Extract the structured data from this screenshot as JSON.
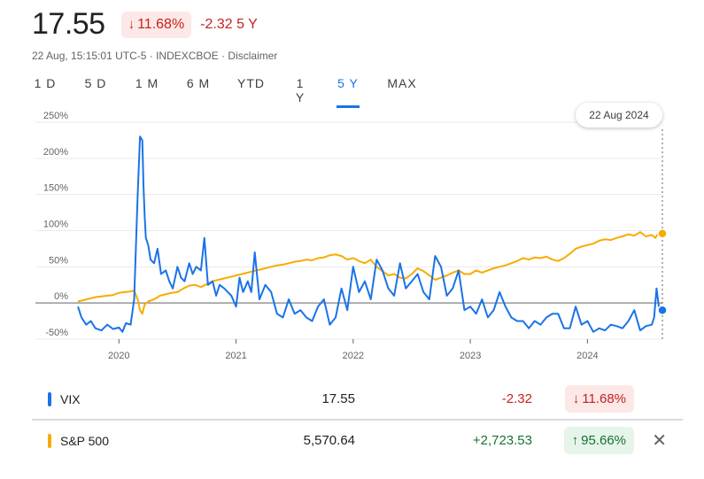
{
  "header": {
    "price": "17.55",
    "change_pct": "11.68%",
    "change_pct_arrow": "arrow-down",
    "change_abs_label": "-2.32 5 Y",
    "subline": "22 Aug, 15:15:01 UTC-5 · INDEXCBOE · Disclaimer"
  },
  "ranges": [
    {
      "label": "1 D",
      "active": false
    },
    {
      "label": "5 D",
      "active": false
    },
    {
      "label": "1 M",
      "active": false
    },
    {
      "label": "6 M",
      "active": false
    },
    {
      "label": "YTD",
      "active": false
    },
    {
      "label": "1 Y",
      "active": false
    },
    {
      "label": "5 Y",
      "active": true
    },
    {
      "label": "MAX",
      "active": false
    }
  ],
  "tooltip": {
    "date": "22 Aug 2024"
  },
  "colors": {
    "vix": "#1a73e8",
    "sp500": "#f9ab00",
    "negative": "#c5221f",
    "positive": "#137333"
  },
  "chart_data": {
    "type": "line",
    "y_unit": "percent change",
    "ylim": [
      -50,
      250
    ],
    "yticks": [
      "250%",
      "200%",
      "150%",
      "100%",
      "50%",
      "0%",
      "-50%"
    ],
    "xticks": [
      "2020",
      "2021",
      "2022",
      "2023",
      "2024"
    ],
    "xlim": [
      2019.65,
      2024.64
    ],
    "grid": true,
    "series": [
      {
        "name": "VIX",
        "x": [
          2019.65,
          2019.68,
          2019.72,
          2019.76,
          2019.8,
          2019.85,
          2019.9,
          2019.95,
          2020.0,
          2020.03,
          2020.06,
          2020.1,
          2020.13,
          2020.15,
          2020.16,
          2020.18,
          2020.2,
          2020.21,
          2020.22,
          2020.23,
          2020.25,
          2020.27,
          2020.3,
          2020.33,
          2020.36,
          2020.4,
          2020.43,
          2020.46,
          2020.5,
          2020.53,
          2020.56,
          2020.6,
          2020.63,
          2020.66,
          2020.7,
          2020.73,
          2020.76,
          2020.8,
          2020.83,
          2020.86,
          2020.9,
          2020.93,
          2020.96,
          2021.0,
          2021.03,
          2021.06,
          2021.1,
          2021.13,
          2021.16,
          2021.2,
          2021.25,
          2021.3,
          2021.35,
          2021.4,
          2021.45,
          2021.5,
          2021.55,
          2021.6,
          2021.65,
          2021.7,
          2021.75,
          2021.8,
          2021.85,
          2021.9,
          2021.95,
          2022.0,
          2022.05,
          2022.1,
          2022.15,
          2022.2,
          2022.25,
          2022.3,
          2022.35,
          2022.4,
          2022.45,
          2022.5,
          2022.55,
          2022.6,
          2022.65,
          2022.7,
          2022.75,
          2022.8,
          2022.85,
          2022.9,
          2022.95,
          2023.0,
          2023.05,
          2023.1,
          2023.15,
          2023.2,
          2023.25,
          2023.3,
          2023.35,
          2023.4,
          2023.45,
          2023.5,
          2023.55,
          2023.6,
          2023.65,
          2023.7,
          2023.75,
          2023.8,
          2023.85,
          2023.9,
          2023.95,
          2024.0,
          2024.05,
          2024.1,
          2024.15,
          2024.2,
          2024.25,
          2024.3,
          2024.35,
          2024.4,
          2024.45,
          2024.5,
          2024.55,
          2024.57,
          2024.59,
          2024.61,
          2024.62,
          2024.64
        ],
        "y": [
          -5,
          -20,
          -30,
          -25,
          -35,
          -38,
          -30,
          -36,
          -34,
          -40,
          -28,
          -30,
          5,
          100,
          150,
          230,
          225,
          160,
          120,
          90,
          80,
          60,
          55,
          75,
          40,
          45,
          30,
          20,
          50,
          35,
          30,
          55,
          40,
          50,
          45,
          90,
          25,
          30,
          10,
          25,
          20,
          15,
          10,
          -5,
          35,
          15,
          30,
          15,
          70,
          5,
          25,
          15,
          -15,
          -20,
          5,
          -15,
          -10,
          -20,
          -25,
          -5,
          5,
          -30,
          -20,
          20,
          -10,
          50,
          15,
          30,
          5,
          60,
          45,
          20,
          10,
          55,
          20,
          30,
          40,
          15,
          5,
          65,
          50,
          10,
          20,
          45,
          -10,
          -5,
          -15,
          5,
          -20,
          -10,
          15,
          -5,
          -20,
          -25,
          -25,
          -35,
          -25,
          -30,
          -20,
          -15,
          -15,
          -35,
          -35,
          -5,
          -30,
          -25,
          -40,
          -35,
          -38,
          -30,
          -32,
          -35,
          -25,
          -10,
          -38,
          -32,
          -30,
          -20,
          20,
          -5,
          -15,
          -10
        ]
      },
      {
        "name": "S&P 500",
        "x": [
          2019.65,
          2019.7,
          2019.75,
          2019.8,
          2019.85,
          2019.9,
          2019.95,
          2020.0,
          2020.05,
          2020.1,
          2020.13,
          2020.16,
          2020.18,
          2020.2,
          2020.22,
          2020.25,
          2020.3,
          2020.35,
          2020.4,
          2020.45,
          2020.5,
          2020.55,
          2020.6,
          2020.65,
          2020.7,
          2020.75,
          2020.8,
          2020.85,
          2020.9,
          2020.95,
          2021.0,
          2021.05,
          2021.1,
          2021.15,
          2021.2,
          2021.25,
          2021.3,
          2021.35,
          2021.4,
          2021.45,
          2021.5,
          2021.55,
          2021.6,
          2021.65,
          2021.7,
          2021.75,
          2021.8,
          2021.85,
          2021.9,
          2021.95,
          2022.0,
          2022.05,
          2022.1,
          2022.15,
          2022.2,
          2022.25,
          2022.3,
          2022.35,
          2022.4,
          2022.45,
          2022.5,
          2022.55,
          2022.6,
          2022.65,
          2022.7,
          2022.75,
          2022.8,
          2022.85,
          2022.9,
          2022.95,
          2023.0,
          2023.05,
          2023.1,
          2023.15,
          2023.2,
          2023.25,
          2023.3,
          2023.35,
          2023.4,
          2023.45,
          2023.5,
          2023.55,
          2023.6,
          2023.65,
          2023.7,
          2023.75,
          2023.8,
          2023.85,
          2023.9,
          2023.95,
          2024.0,
          2024.05,
          2024.1,
          2024.15,
          2024.2,
          2024.25,
          2024.3,
          2024.35,
          2024.4,
          2024.45,
          2024.5,
          2024.55,
          2024.58,
          2024.6,
          2024.62,
          2024.64
        ],
        "y": [
          2,
          4,
          6,
          8,
          9,
          10,
          11,
          14,
          15,
          16,
          17,
          5,
          -10,
          -15,
          -2,
          2,
          5,
          10,
          12,
          14,
          15,
          20,
          24,
          25,
          22,
          26,
          30,
          32,
          34,
          36,
          38,
          40,
          42,
          44,
          46,
          48,
          50,
          52,
          53,
          55,
          57,
          58,
          60,
          59,
          62,
          63,
          66,
          67,
          65,
          60,
          62,
          58,
          55,
          60,
          50,
          44,
          38,
          40,
          35,
          34,
          40,
          48,
          44,
          38,
          32,
          35,
          38,
          42,
          45,
          40,
          40,
          45,
          42,
          45,
          48,
          50,
          52,
          55,
          58,
          62,
          60,
          63,
          62,
          64,
          60,
          58,
          62,
          68,
          75,
          78,
          80,
          82,
          86,
          88,
          87,
          90,
          92,
          95,
          93,
          98,
          92,
          94,
          90,
          95,
          97,
          96
        ]
      }
    ]
  },
  "legend": [
    {
      "name": "VIX",
      "value": "17.55",
      "abs": "-2.32",
      "pct": "11.68%",
      "direction": "down",
      "closable": false
    },
    {
      "name": "S&P 500",
      "value": "5,570.64",
      "abs": "+2,723.53",
      "pct": "95.66%",
      "direction": "up",
      "closable": true
    }
  ]
}
